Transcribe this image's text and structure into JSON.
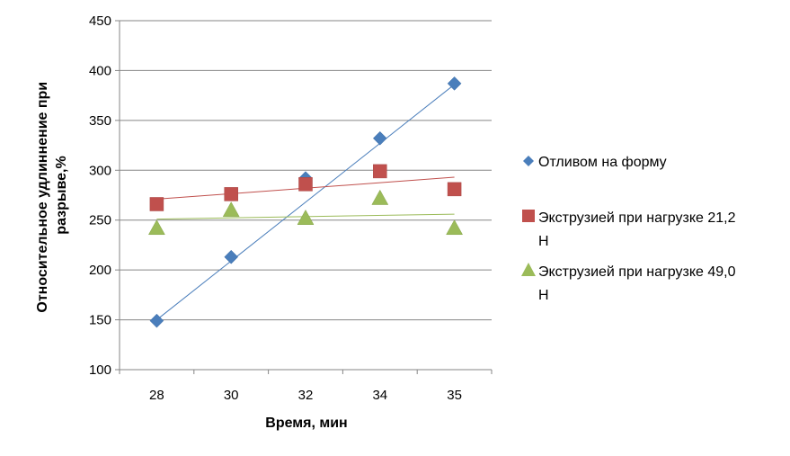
{
  "chart_data": {
    "type": "scatter",
    "xlabel": "Время, мин",
    "ylabel": "Относительное удлиннение при разрыве,%",
    "ylabel_lines": [
      "Относительное удлиннение при",
      "разрыве,%"
    ],
    "x_categories": [
      "28",
      "30",
      "32",
      "34",
      "35"
    ],
    "ylim": [
      100,
      450
    ],
    "yticks": [
      100,
      150,
      200,
      250,
      300,
      350,
      400,
      450
    ],
    "grid": "horizontal",
    "legend_position": "right",
    "series": [
      {
        "name": "Отливом на форму",
        "legend_lines": [
          "Отливом на форму"
        ],
        "marker": "diamond",
        "color": "#4A7EBB",
        "values": [
          149,
          213,
          292,
          332,
          387
        ],
        "trendline": {
          "color": "#4A7EBB",
          "start": 150,
          "end": 386
        }
      },
      {
        "name": "Экструзией при нагрузке 21,2 Н",
        "legend_lines": [
          "Экструзией при нагрузке 21,2",
          "Н"
        ],
        "marker": "square",
        "color": "#C0504D",
        "values": [
          266,
          276,
          286,
          299,
          281
        ],
        "trendline": {
          "color": "#C0504D",
          "start": 271,
          "end": 293
        }
      },
      {
        "name": "Экструзией при нагрузке 49,0 Н",
        "legend_lines": [
          "Экструзией при нагрузке 49,0",
          "Н"
        ],
        "marker": "triangle",
        "color": "#9BBB59",
        "values": [
          242,
          260,
          252,
          272,
          242
        ],
        "trendline": {
          "color": "#9BBB59",
          "start": 251,
          "end": 256
        }
      }
    ]
  }
}
